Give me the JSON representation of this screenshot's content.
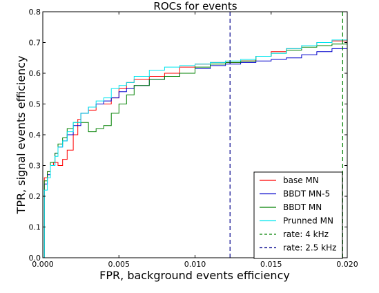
{
  "chart_data": {
    "type": "line",
    "title": "ROCs for events",
    "xlabel": "FPR, background events efficiency",
    "ylabel": "TPR, signal events efficiency",
    "xlim": [
      0.0,
      0.02
    ],
    "ylim": [
      0.0,
      0.8
    ],
    "xticks": [
      "0.000",
      "0.005",
      "0.010",
      "0.015",
      "0.020"
    ],
    "yticks": [
      "0.0",
      "0.1",
      "0.2",
      "0.3",
      "0.4",
      "0.5",
      "0.6",
      "0.7",
      "0.8"
    ],
    "legend_position": "lower-right",
    "series": [
      {
        "name": "base MN",
        "color": "#ff0000",
        "style": "solid",
        "x": [
          0.0,
          0.0001,
          0.0003,
          0.0005,
          0.0007,
          0.001,
          0.0013,
          0.0016,
          0.002,
          0.0023,
          0.0025,
          0.003,
          0.0035,
          0.004,
          0.0045,
          0.005,
          0.0055,
          0.006,
          0.007,
          0.008,
          0.009,
          0.01,
          0.011,
          0.012,
          0.013,
          0.014,
          0.015,
          0.016,
          0.017,
          0.018,
          0.019,
          0.02
        ],
        "y": [
          0.0,
          0.26,
          0.28,
          0.3,
          0.31,
          0.3,
          0.32,
          0.35,
          0.4,
          0.45,
          0.47,
          0.48,
          0.5,
          0.5,
          0.52,
          0.55,
          0.57,
          0.58,
          0.59,
          0.6,
          0.62,
          0.63,
          0.635,
          0.635,
          0.64,
          0.655,
          0.67,
          0.68,
          0.69,
          0.7,
          0.705,
          0.71
        ]
      },
      {
        "name": "BBDT MN-5",
        "color": "#0000cc",
        "style": "solid",
        "x": [
          0.0,
          0.0001,
          0.0003,
          0.0005,
          0.0008,
          0.001,
          0.0013,
          0.0016,
          0.002,
          0.0025,
          0.003,
          0.0035,
          0.004,
          0.0045,
          0.005,
          0.0055,
          0.006,
          0.007,
          0.008,
          0.009,
          0.01,
          0.011,
          0.012,
          0.013,
          0.014,
          0.015,
          0.016,
          0.017,
          0.018,
          0.019,
          0.02
        ],
        "y": [
          0.0,
          0.24,
          0.27,
          0.3,
          0.34,
          0.36,
          0.38,
          0.4,
          0.43,
          0.47,
          0.49,
          0.5,
          0.51,
          0.52,
          0.54,
          0.55,
          0.56,
          0.58,
          0.59,
          0.6,
          0.615,
          0.625,
          0.63,
          0.635,
          0.64,
          0.645,
          0.65,
          0.66,
          0.67,
          0.68,
          0.69
        ]
      },
      {
        "name": "BBDT MN",
        "color": "#008000",
        "style": "solid",
        "x": [
          0.0,
          0.0001,
          0.0003,
          0.0005,
          0.0008,
          0.001,
          0.0013,
          0.0016,
          0.002,
          0.0025,
          0.003,
          0.0035,
          0.004,
          0.0045,
          0.005,
          0.0055,
          0.006,
          0.007,
          0.008,
          0.009,
          0.01,
          0.011,
          0.012,
          0.013,
          0.014,
          0.015,
          0.016,
          0.017,
          0.018,
          0.019,
          0.02
        ],
        "y": [
          0.0,
          0.25,
          0.28,
          0.31,
          0.34,
          0.37,
          0.39,
          0.42,
          0.44,
          0.44,
          0.41,
          0.42,
          0.43,
          0.47,
          0.5,
          0.53,
          0.56,
          0.58,
          0.59,
          0.6,
          0.62,
          0.63,
          0.635,
          0.64,
          0.655,
          0.665,
          0.675,
          0.685,
          0.69,
          0.695,
          0.7
        ]
      },
      {
        "name": "Prunned MN",
        "color": "#00e5ee",
        "style": "solid",
        "x": [
          0.0,
          0.0001,
          0.0003,
          0.0005,
          0.0008,
          0.001,
          0.0013,
          0.0016,
          0.002,
          0.0025,
          0.003,
          0.0035,
          0.004,
          0.0045,
          0.005,
          0.0055,
          0.006,
          0.007,
          0.008,
          0.009,
          0.01,
          0.011,
          0.012,
          0.013,
          0.014,
          0.015,
          0.016,
          0.017,
          0.018,
          0.019,
          0.02
        ],
        "y": [
          0.0,
          0.22,
          0.26,
          0.3,
          0.33,
          0.36,
          0.38,
          0.41,
          0.44,
          0.47,
          0.49,
          0.51,
          0.52,
          0.55,
          0.56,
          0.57,
          0.59,
          0.61,
          0.62,
          0.625,
          0.63,
          0.635,
          0.64,
          0.645,
          0.655,
          0.665,
          0.68,
          0.69,
          0.7,
          0.708,
          0.71
        ]
      }
    ],
    "vlines": [
      {
        "name": "rate: 4 kHz",
        "x": 0.0197,
        "color": "#008000",
        "style": "dashed"
      },
      {
        "name": "rate: 2.5 kHz",
        "x": 0.0123,
        "color": "#00008b",
        "style": "dashed"
      }
    ]
  }
}
